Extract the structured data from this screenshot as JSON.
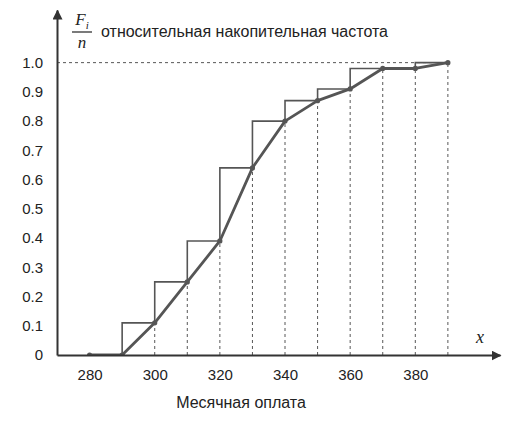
{
  "chart_data": {
    "type": "line",
    "y_symbol_numerator": "F",
    "y_symbol_subscript": "i",
    "y_symbol_denominator": "n",
    "y_label": "относительная накопительная частота",
    "x_symbol": "x",
    "x_label": "Месячная оплата",
    "x": [
      280,
      290,
      300,
      310,
      320,
      330,
      340,
      350,
      360,
      370,
      380,
      390
    ],
    "values": [
      0,
      0,
      0.11,
      0.25,
      0.39,
      0.64,
      0.8,
      0.87,
      0.91,
      0.98,
      0.98,
      1
    ],
    "color": "#555555",
    "marker": "circle",
    "line_style": "solid",
    "xlim": [
      270,
      406
    ],
    "ylim": [
      0,
      1.18
    ],
    "xticks": [
      280,
      300,
      320,
      340,
      360,
      380
    ],
    "yticks": [
      0,
      0.1,
      0.2,
      0.3,
      0.4,
      0.5,
      0.6,
      0.7,
      0.8,
      0.9,
      {
        "value": 1,
        "label": "1.0"
      }
    ],
    "grid": false
  }
}
